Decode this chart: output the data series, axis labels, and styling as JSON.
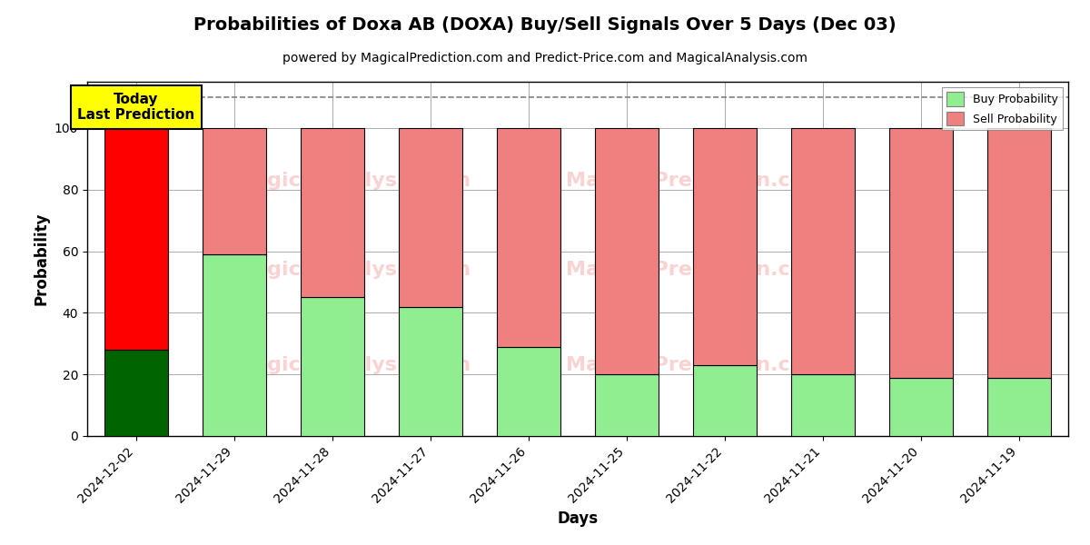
{
  "title": "Probabilities of Doxa AB (DOXA) Buy/Sell Signals Over 5 Days (Dec 03)",
  "subtitle": "powered by MagicalPrediction.com and Predict-Price.com and MagicalAnalysis.com",
  "xlabel": "Days",
  "ylabel": "Probability",
  "categories": [
    "2024-12-02",
    "2024-11-29",
    "2024-11-28",
    "2024-11-27",
    "2024-11-26",
    "2024-11-25",
    "2024-11-22",
    "2024-11-21",
    "2024-11-20",
    "2024-11-19"
  ],
  "buy_values": [
    28,
    59,
    45,
    42,
    29,
    20,
    23,
    20,
    19,
    19
  ],
  "sell_values": [
    72,
    41,
    55,
    58,
    71,
    80,
    77,
    80,
    81,
    81
  ],
  "buy_colors": [
    "#006400",
    "#90EE90",
    "#90EE90",
    "#90EE90",
    "#90EE90",
    "#90EE90",
    "#90EE90",
    "#90EE90",
    "#90EE90",
    "#90EE90"
  ],
  "sell_colors": [
    "#FF0000",
    "#F08080",
    "#F08080",
    "#F08080",
    "#F08080",
    "#F08080",
    "#F08080",
    "#F08080",
    "#F08080",
    "#F08080"
  ],
  "legend_buy_color": "#90EE90",
  "legend_sell_color": "#F08080",
  "ylim": [
    0,
    115
  ],
  "dashed_line_y": 110,
  "today_box_text": "Today\nLast Prediction",
  "today_box_facecolor": "#FFFF00",
  "watermark_color": "#F08080",
  "watermark_alpha": 0.35,
  "background_color": "#ffffff",
  "grid_color": "#aaaaaa",
  "title_fontsize": 14,
  "subtitle_fontsize": 10,
  "axis_label_fontsize": 12,
  "tick_fontsize": 10,
  "bar_edge_color": "#000000",
  "bar_edge_linewidth": 0.8,
  "legend_label_buy": "Buy Probability",
  "legend_label_sell": "Sell Probability"
}
